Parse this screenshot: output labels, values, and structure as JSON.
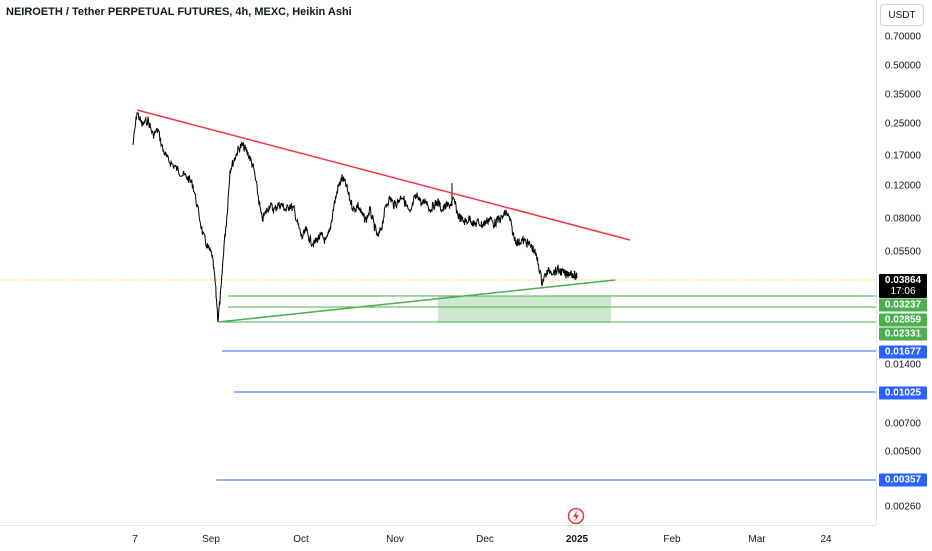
{
  "title": "NEIROETH / Tether PERPETUAL FUTURES, 4h, MEXC, Heikin Ashi",
  "currency": "USDT",
  "price_axis": [
    "0.70000",
    "0.50000",
    "0.35000",
    "0.25000",
    "0.17000",
    "0.12000",
    "0.08000",
    "0.05500",
    "0.01400",
    "0.00700",
    "0.00500",
    "0.00260"
  ],
  "current_price": {
    "value": "0.03864",
    "countdown": "17:06",
    "color": "#000000"
  },
  "level_tags": [
    {
      "value": "0.03237",
      "color": "#4caf50"
    },
    {
      "value": "0.02859",
      "color": "#4caf50"
    },
    {
      "value": "0.02331",
      "color": "#4caf50"
    },
    {
      "value": "0.01677",
      "color": "#2962ff"
    },
    {
      "value": "0.01025",
      "color": "#2962ff"
    },
    {
      "value": "0.00357",
      "color": "#2962ff"
    }
  ],
  "time_axis": [
    {
      "label": "7",
      "bold": false
    },
    {
      "label": "Sep",
      "bold": false
    },
    {
      "label": "Oct",
      "bold": false
    },
    {
      "label": "Nov",
      "bold": false
    },
    {
      "label": "Dec",
      "bold": false
    },
    {
      "label": "2025",
      "bold": true
    },
    {
      "label": "Feb",
      "bold": false
    },
    {
      "label": "Mar",
      "bold": false
    },
    {
      "label": "24",
      "bold": false
    }
  ],
  "colors": {
    "resistance": "#f23645",
    "support": "#4caf50",
    "zone": "#a5d6a7",
    "target": "#2962ff",
    "price": "#000000"
  },
  "icons": {
    "logo": "tradingview-flash-icon"
  }
}
